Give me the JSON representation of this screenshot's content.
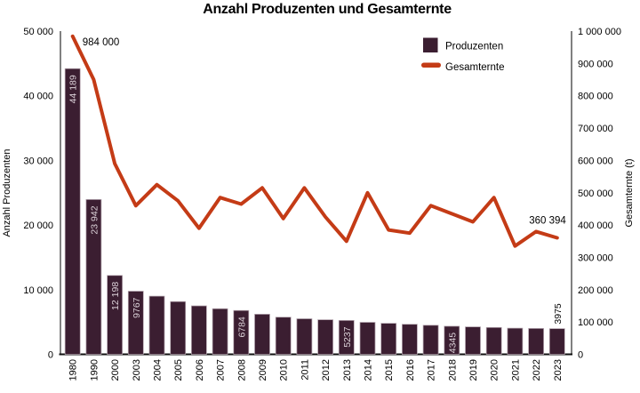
{
  "title": "Anzahl Produzenten und Gesamternte",
  "legend": {
    "bar_label": "Produzenten",
    "line_label": "Gesamternte"
  },
  "left_axis": {
    "title": "Anzahl Produzenten",
    "ticks": [
      [
        0,
        "0"
      ],
      [
        10000,
        "10 000"
      ],
      [
        20000,
        "20 000"
      ],
      [
        30000,
        "30 000"
      ],
      [
        40000,
        "40 000"
      ],
      [
        50000,
        "50 000"
      ]
    ]
  },
  "right_axis": {
    "title": "Gesamternte (t)",
    "ticks": [
      [
        0,
        "0"
      ],
      [
        100000,
        "100 000"
      ],
      [
        200000,
        "200 000"
      ],
      [
        300000,
        "300 000"
      ],
      [
        400000,
        "400 000"
      ],
      [
        500000,
        "500 000"
      ],
      [
        600000,
        "600 000"
      ],
      [
        700000,
        "700 000"
      ],
      [
        800000,
        "800 000"
      ],
      [
        900000,
        "900 000"
      ],
      [
        1000000,
        "1 000 000"
      ]
    ]
  },
  "colors": {
    "bar": "#3b1e31",
    "bar_border": "#b3a4ae",
    "bar_label_text": "#dcd2d9",
    "line": "#c43b16",
    "axis": "#4a4a4a",
    "baseline": "#111111",
    "text": "#000000"
  },
  "chart_data": {
    "type": "bar+line",
    "title": "Anzahl Produzenten und Gesamternte",
    "categories": [
      "1980",
      "1990",
      "2000",
      "2003",
      "2004",
      "2005",
      "2006",
      "2007",
      "2008",
      "2009",
      "2010",
      "2011",
      "2012",
      "2013",
      "2014",
      "2015",
      "2016",
      "2017",
      "2018",
      "2019",
      "2020",
      "2021",
      "2022",
      "2023"
    ],
    "ylabel_left": "Anzahl Produzenten",
    "ylabel_right": "Gesamternte (t)",
    "ylim_left": [
      0,
      50000
    ],
    "ylim_right": [
      0,
      1000000
    ],
    "grid": false,
    "legend_position": "top-right",
    "series": [
      {
        "name": "Produzenten",
        "type": "bar",
        "axis": "left",
        "values": [
          44189,
          23942,
          12198,
          9767,
          9000,
          8150,
          7500,
          7050,
          6784,
          6200,
          5750,
          5500,
          5350,
          5237,
          4950,
          4800,
          4650,
          4500,
          4345,
          4250,
          4150,
          4050,
          4000,
          3975
        ],
        "point_labels": [
          {
            "year": "1980",
            "text": "44 189",
            "placement": "inside"
          },
          {
            "year": "1990",
            "text": "23 942",
            "placement": "inside"
          },
          {
            "year": "2000",
            "text": "12 198",
            "placement": "inside"
          },
          {
            "year": "2003",
            "text": "9767",
            "placement": "inside"
          },
          {
            "year": "2008",
            "text": "6784",
            "placement": "inside"
          },
          {
            "year": "2013",
            "text": "5237",
            "placement": "inside"
          },
          {
            "year": "2018",
            "text": "4345",
            "placement": "inside"
          },
          {
            "year": "2023",
            "text": "3975",
            "placement": "above"
          }
        ]
      },
      {
        "name": "Gesamternte",
        "type": "line",
        "axis": "right",
        "values": [
          984000,
          850000,
          590000,
          460000,
          525000,
          475000,
          390000,
          485000,
          465000,
          515000,
          420000,
          515000,
          425000,
          350000,
          500000,
          385000,
          375000,
          460000,
          435000,
          410000,
          485000,
          335000,
          380000,
          360394
        ],
        "point_labels": [
          {
            "year": "1980",
            "text": "984 000",
            "anchor": "start",
            "dx": 11,
            "dy": 10
          },
          {
            "year": "2023",
            "text": "360 394",
            "anchor": "end",
            "dx": 10,
            "dy": -16
          }
        ]
      }
    ]
  }
}
